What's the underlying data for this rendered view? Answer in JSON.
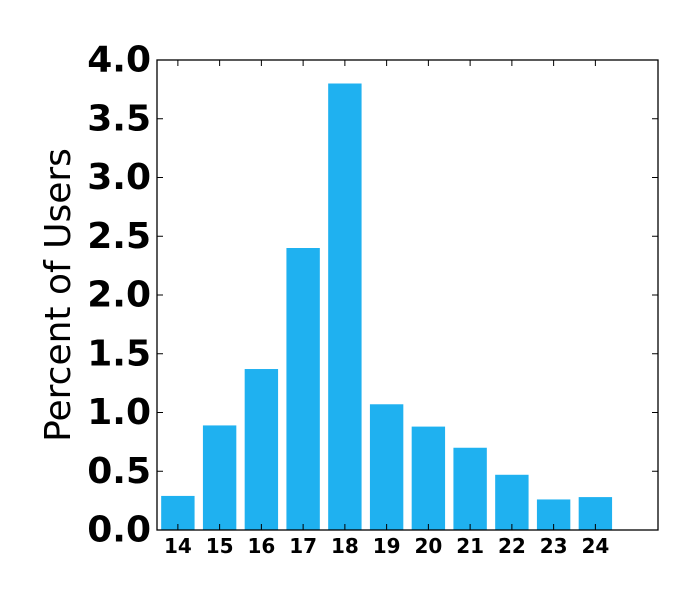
{
  "chart_data": {
    "type": "bar",
    "categories": [
      "14",
      "15",
      "16",
      "17",
      "18",
      "19",
      "20",
      "21",
      "22",
      "23",
      "24"
    ],
    "values": [
      0.29,
      0.89,
      1.37,
      2.4,
      3.8,
      1.07,
      0.88,
      0.7,
      0.47,
      0.26,
      0.28
    ],
    "xlabel": "",
    "ylabel": "Percent of Users",
    "ylim": [
      0,
      4.0
    ],
    "yticks": [
      "0.0",
      "0.5",
      "1.0",
      "1.5",
      "2.0",
      "2.5",
      "3.0",
      "3.5",
      "4.0"
    ],
    "bar_color": "#1fb1f0",
    "grid": false,
    "legend": "none"
  }
}
